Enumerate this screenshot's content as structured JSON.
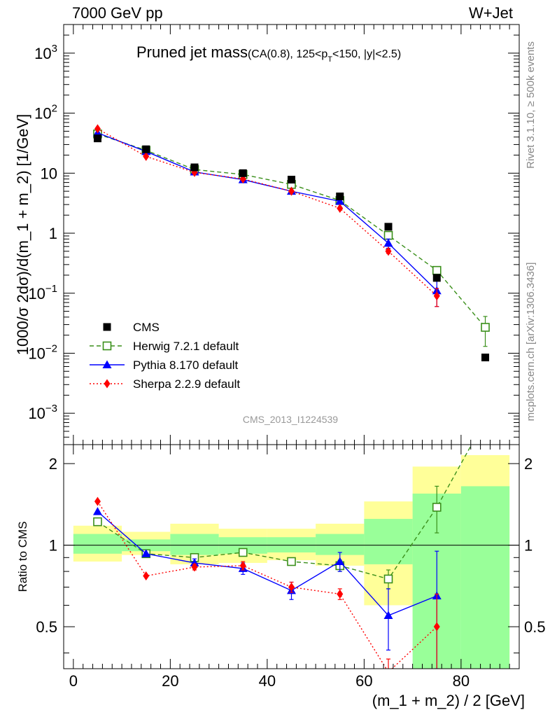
{
  "header": {
    "left": "7000 GeV pp",
    "right": "W+Jet"
  },
  "title": {
    "main": "Pruned jet mass",
    "cuts_prefix": "(CA(0.8), 125<p",
    "cuts_sub": "T",
    "cuts_suffix": "<150, |y|<2.5)"
  },
  "side_labels": {
    "rivet": "Rivet 3.1.10, ≥ 500k events",
    "mcplots": "mcplots.cern.ch [arXiv:1306.3436]"
  },
  "watermark": "CMS_2013_I1224539",
  "axes": {
    "ylabel_top": "1000/σ 2dσ)/d(m_1 + m_2) [1/GeV]",
    "ylabel_bottom": "Ratio to CMS",
    "xlabel": "(m_1 + m_2) / 2 [GeV]",
    "x_ticks": [
      "0",
      "20",
      "40",
      "60",
      "80"
    ],
    "y_top_ticks": [
      {
        "v": 1000,
        "base": "10",
        "exp": "3"
      },
      {
        "v": 100,
        "base": "10",
        "exp": "2"
      },
      {
        "v": 10,
        "base": "10",
        "exp": ""
      },
      {
        "v": 1,
        "base": "1",
        "exp": ""
      },
      {
        "v": 0.1,
        "base": "10",
        "exp": "−1"
      },
      {
        "v": 0.01,
        "base": "10",
        "exp": "−2"
      },
      {
        "v": 0.001,
        "base": "10",
        "exp": "−3"
      }
    ],
    "y_ratio_ticks": [
      "0.5",
      "1",
      "2"
    ]
  },
  "legend": [
    {
      "label": "CMS",
      "color": "#000000",
      "marker": "square-filled",
      "line": "none"
    },
    {
      "label": "Herwig 7.2.1 default",
      "color": "#3a8f1a",
      "marker": "square-open",
      "line": "dashed"
    },
    {
      "label": "Pythia 8.170 default",
      "color": "#0000ff",
      "marker": "triangle",
      "line": "solid"
    },
    {
      "label": "Sherpa 2.2.9 default",
      "color": "#ff0000",
      "marker": "diamond",
      "line": "dotted"
    }
  ],
  "chart_data": {
    "type": "scatter",
    "x_range": [
      -2,
      92
    ],
    "y_range_main": [
      0.0003,
      3000
    ],
    "y_scale_main": "log",
    "y_range_ratio": [
      0.35,
      2.35
    ],
    "y_scale_ratio": "log",
    "data_x": [
      5,
      15,
      25,
      35,
      45,
      55,
      65,
      75,
      85
    ],
    "data": [
      38,
      25,
      12.5,
      10,
      7.8,
      4.1,
      1.28,
      0.18,
      0.0085
    ],
    "band_edges": [
      0,
      10,
      20,
      30,
      40,
      50,
      60,
      70,
      80,
      90
    ],
    "band_green": [
      [
        0.93,
        1.1
      ],
      [
        0.95,
        1.05
      ],
      [
        0.92,
        1.1
      ],
      [
        0.93,
        1.07
      ],
      [
        0.94,
        1.07
      ],
      [
        0.92,
        1.1
      ],
      [
        0.85,
        1.25
      ],
      [
        0.35,
        1.55
      ],
      [
        0.35,
        1.65
      ]
    ],
    "band_yellow": [
      [
        0.87,
        1.18
      ],
      [
        0.92,
        1.12
      ],
      [
        0.85,
        1.2
      ],
      [
        0.86,
        1.15
      ],
      [
        0.88,
        1.15
      ],
      [
        0.84,
        1.2
      ],
      [
        0.6,
        1.45
      ],
      [
        0.53,
        1.95
      ],
      [
        0.35,
        2.15
      ]
    ],
    "series": [
      {
        "name": "Herwig 7.2.1 default",
        "x": [
          5,
          15,
          25,
          35,
          45,
          55,
          65,
          75,
          85
        ],
        "y": [
          45,
          24,
          11.5,
          9.5,
          6.5,
          3.5,
          0.92,
          0.24,
          0.027
        ],
        "yerr": [
          0,
          0,
          0,
          0,
          0,
          0,
          0.05,
          0.03,
          0.014
        ],
        "ratio_x": [
          5,
          15,
          25,
          35,
          45,
          55,
          65,
          75,
          85
        ],
        "ratio": [
          1.22,
          0.93,
          0.9,
          0.94,
          0.87,
          0.84,
          0.75,
          1.38,
          2.9
        ],
        "ratio_err": [
          0,
          0,
          0,
          0,
          0,
          0.04,
          0.06,
          0.27,
          0
        ]
      },
      {
        "name": "Pythia 8.170 default",
        "x": [
          5,
          15,
          25,
          35,
          45,
          55,
          65,
          75
        ],
        "y": [
          47,
          23,
          10.5,
          7.8,
          5.0,
          3.4,
          0.68,
          0.11
        ],
        "yerr": [
          0,
          0,
          0,
          0,
          0,
          0.2,
          0.12,
          0.05
        ],
        "ratio_x": [
          5,
          15,
          25,
          35,
          45,
          55,
          65,
          75
        ],
        "ratio": [
          1.33,
          0.93,
          0.86,
          0.82,
          0.68,
          0.87,
          0.55,
          0.65
        ],
        "ratio_err": [
          0,
          0,
          0.03,
          0.04,
          0.05,
          0.07,
          0.14,
          0.3
        ]
      },
      {
        "name": "Sherpa 2.2.9 default",
        "x": [
          5,
          15,
          25,
          35,
          45,
          55,
          65,
          75
        ],
        "y": [
          55,
          19,
          10.3,
          8.0,
          5.0,
          2.6,
          0.5,
          0.09
        ],
        "yerr": [
          0,
          0,
          0,
          0,
          0,
          0,
          0.04,
          0.03
        ],
        "ratio_x": [
          5,
          15,
          25,
          35,
          45,
          55,
          65,
          75
        ],
        "ratio": [
          1.45,
          0.77,
          0.83,
          0.84,
          0.7,
          0.66,
          0.34,
          0.5
        ],
        "ratio_err": [
          0,
          0,
          0.02,
          0.03,
          0.03,
          0.03,
          0.04,
          0.16
        ]
      }
    ]
  }
}
